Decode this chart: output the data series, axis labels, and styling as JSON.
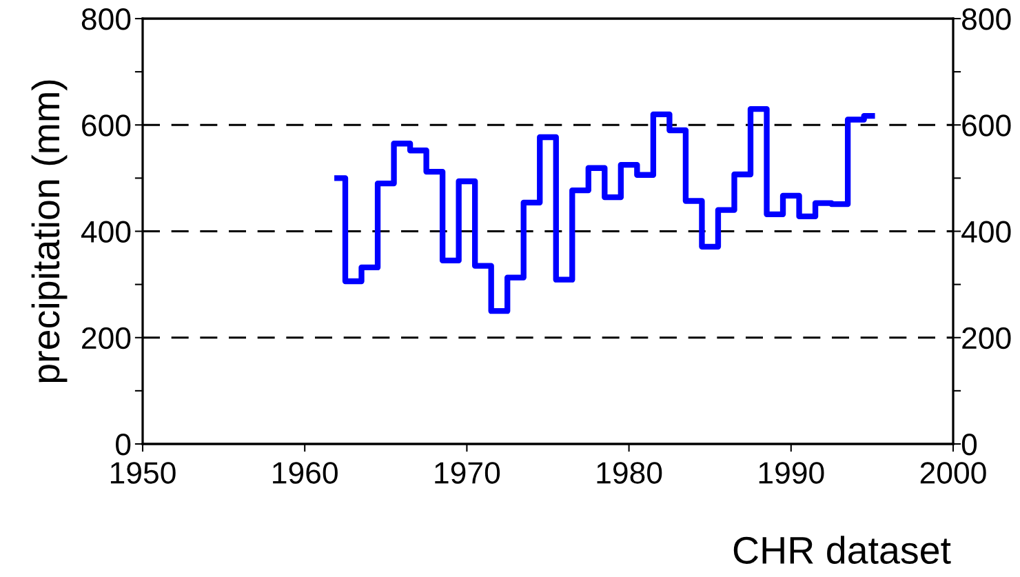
{
  "chart_data": {
    "type": "step",
    "ylabel": "precipitation (mm)",
    "annotations": [
      "CHR dataset"
    ],
    "x": [
      1962,
      1963,
      1964,
      1965,
      1966,
      1967,
      1968,
      1969,
      1970,
      1971,
      1972,
      1973,
      1974,
      1975,
      1976,
      1977,
      1978,
      1979,
      1980,
      1981,
      1982,
      1983,
      1984,
      1985,
      1986,
      1987,
      1988,
      1989,
      1990,
      1991,
      1992,
      1993,
      1994,
      1995
    ],
    "series": [
      {
        "color": "#0000ff",
        "values": [
          500,
          306,
          332,
          490,
          565,
          552,
          512,
          345,
          494,
          335,
          250,
          313,
          454,
          577,
          309,
          477,
          519,
          464,
          525,
          506,
          620,
          590,
          457,
          371,
          440,
          507,
          630,
          432,
          467,
          428,
          453,
          451,
          610,
          617
        ]
      }
    ],
    "xlim": [
      1950,
      2000
    ],
    "xticks": [
      1950,
      1960,
      1970,
      1980,
      1990,
      2000
    ],
    "ylim": [
      0,
      800
    ],
    "yticks": [
      0,
      {
        "value": 100,
        "label": null
      },
      200,
      {
        "value": 300,
        "label": null
      },
      400,
      {
        "value": 500,
        "label": null
      },
      600,
      {
        "value": 700,
        "label": null
      },
      800
    ],
    "y2lim": [
      0,
      800
    ],
    "y2ticks": [
      0,
      {
        "value": 100,
        "label": null
      },
      200,
      {
        "value": 300,
        "label": null
      },
      400,
      {
        "value": 500,
        "label": null
      },
      600,
      {
        "value": 700,
        "label": null
      },
      800
    ],
    "ref_lines": [
      {
        "axis": "y",
        "value": 200,
        "color": "#000000",
        "line_style": "dashed"
      },
      {
        "axis": "y",
        "value": 400,
        "color": "#000000",
        "line_style": "dashed"
      },
      {
        "axis": "y",
        "value": 600,
        "color": "#000000",
        "line_style": "dashed"
      }
    ],
    "grid": false,
    "marker": "none",
    "line_style": "solid"
  }
}
